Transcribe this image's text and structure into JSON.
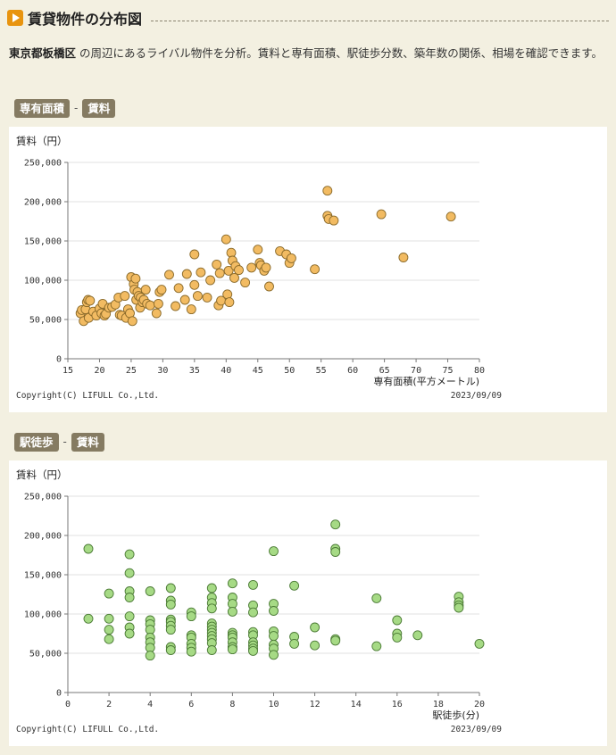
{
  "section": {
    "title": "賃貸物件の分布図",
    "icon": "play-icon"
  },
  "intro": {
    "area": "東京都板橋区",
    "text": " の周辺にあるライバル物件を分析。賃料と専有面積、駅徒歩分数、築年数の関係、相場を確認できます。"
  },
  "charts": [
    {
      "tag_x": "専有面積",
      "tag_sep": "-",
      "tag_y": "賃料"
    },
    {
      "tag_x": "駅徒歩",
      "tag_sep": "-",
      "tag_y": "賃料"
    }
  ],
  "chart_data": [
    {
      "type": "scatter",
      "ylabel": "賃料（円）",
      "xlabel": "専有面積(平方メートル)",
      "xlim": [
        15,
        80
      ],
      "ylim": [
        0,
        250000
      ],
      "x_ticks": [
        15,
        20,
        25,
        30,
        35,
        40,
        45,
        50,
        55,
        60,
        65,
        70,
        75,
        80
      ],
      "y_ticks": [
        0,
        50000,
        100000,
        150000,
        200000,
        250000
      ],
      "y_tick_labels": [
        "0",
        "50,000",
        "100,000",
        "150,000",
        "200,000",
        "250,000"
      ],
      "grid": true,
      "marker_color": "#f2bb62",
      "marker_edge": "#8a6a2a",
      "copyright": "Copyright(C) LIFULL Co.,Ltd.",
      "date": "2023/09/09",
      "points": [
        [
          17,
          58000
        ],
        [
          17.2,
          62000
        ],
        [
          17.5,
          48000
        ],
        [
          17.8,
          63000
        ],
        [
          18,
          72000
        ],
        [
          18.2,
          75000
        ],
        [
          18.5,
          74000
        ],
        [
          18.3,
          52000
        ],
        [
          19,
          60000
        ],
        [
          19.5,
          55000
        ],
        [
          20,
          64000
        ],
        [
          20.3,
          58000
        ],
        [
          20.5,
          70000
        ],
        [
          20.8,
          55000
        ],
        [
          21,
          57000
        ],
        [
          21.5,
          65000
        ],
        [
          22,
          66000
        ],
        [
          22.5,
          69000
        ],
        [
          23,
          78000
        ],
        [
          23.2,
          56000
        ],
        [
          23.5,
          55000
        ],
        [
          24,
          80000
        ],
        [
          24.2,
          52000
        ],
        [
          24.5,
          63000
        ],
        [
          24.8,
          58000
        ],
        [
          25,
          104000
        ],
        [
          25.2,
          48000
        ],
        [
          25.4,
          95000
        ],
        [
          25.5,
          88000
        ],
        [
          25.7,
          102000
        ],
        [
          25.8,
          75000
        ],
        [
          26,
          85000
        ],
        [
          26.2,
          80000
        ],
        [
          26.4,
          65000
        ],
        [
          26.5,
          78000
        ],
        [
          26.8,
          72000
        ],
        [
          27,
          75000
        ],
        [
          27.3,
          88000
        ],
        [
          27.5,
          70000
        ],
        [
          28,
          68000
        ],
        [
          29,
          58000
        ],
        [
          29.3,
          70000
        ],
        [
          29.5,
          85000
        ],
        [
          29.8,
          88000
        ],
        [
          31,
          107000
        ],
        [
          32,
          67000
        ],
        [
          32.5,
          90000
        ],
        [
          33.5,
          75000
        ],
        [
          33.8,
          108000
        ],
        [
          34.5,
          63000
        ],
        [
          35,
          94000
        ],
        [
          35,
          133000
        ],
        [
          35.5,
          80000
        ],
        [
          36,
          110000
        ],
        [
          37,
          78000
        ],
        [
          37.5,
          100000
        ],
        [
          38.5,
          120000
        ],
        [
          38.8,
          68000
        ],
        [
          39,
          109000
        ],
        [
          39.2,
          74000
        ],
        [
          40,
          152000
        ],
        [
          40.2,
          82000
        ],
        [
          40.4,
          112000
        ],
        [
          40.5,
          72000
        ],
        [
          40.8,
          135000
        ],
        [
          41,
          125000
        ],
        [
          41.3,
          103000
        ],
        [
          41.5,
          118000
        ],
        [
          42,
          113000
        ],
        [
          43,
          97000
        ],
        [
          44,
          116000
        ],
        [
          45,
          139000
        ],
        [
          45.3,
          122000
        ],
        [
          45.5,
          119000
        ],
        [
          46,
          112000
        ],
        [
          46.3,
          116000
        ],
        [
          46.8,
          92000
        ],
        [
          48.5,
          137000
        ],
        [
          49.5,
          133000
        ],
        [
          50,
          122000
        ],
        [
          50.3,
          128000
        ],
        [
          54,
          114000
        ],
        [
          56,
          214000
        ],
        [
          56,
          182000
        ],
        [
          56.2,
          178000
        ],
        [
          57,
          176000
        ],
        [
          64.5,
          184000
        ],
        [
          68,
          129000
        ],
        [
          75.5,
          181000
        ]
      ]
    },
    {
      "type": "scatter",
      "ylabel": "賃料（円）",
      "xlabel": "駅徒歩(分)",
      "xlim": [
        0,
        20
      ],
      "ylim": [
        0,
        250000
      ],
      "x_ticks": [
        0,
        2,
        4,
        6,
        8,
        10,
        12,
        14,
        16,
        18,
        20
      ],
      "y_ticks": [
        0,
        50000,
        100000,
        150000,
        200000,
        250000
      ],
      "y_tick_labels": [
        "0",
        "50,000",
        "100,000",
        "150,000",
        "200,000",
        "250,000"
      ],
      "grid": true,
      "marker_color": "#a6da85",
      "marker_edge": "#4b7a35",
      "copyright": "Copyright(C) LIFULL Co.,Ltd.",
      "date": "2023/09/09",
      "points": [
        [
          1,
          183000
        ],
        [
          1,
          94000
        ],
        [
          2,
          126000
        ],
        [
          2,
          94000
        ],
        [
          2,
          80000
        ],
        [
          2,
          68000
        ],
        [
          3,
          176000
        ],
        [
          3,
          152000
        ],
        [
          3,
          129000
        ],
        [
          3,
          121000
        ],
        [
          3,
          97000
        ],
        [
          3,
          83000
        ],
        [
          3,
          75000
        ],
        [
          4,
          129000
        ],
        [
          4,
          92000
        ],
        [
          4,
          87000
        ],
        [
          4,
          80000
        ],
        [
          4,
          70000
        ],
        [
          4,
          64000
        ],
        [
          4,
          57000
        ],
        [
          4,
          47000
        ],
        [
          5,
          133000
        ],
        [
          5,
          117000
        ],
        [
          5,
          112000
        ],
        [
          5,
          93000
        ],
        [
          5,
          90000
        ],
        [
          5,
          85000
        ],
        [
          5,
          80000
        ],
        [
          5,
          58000
        ],
        [
          5,
          54000
        ],
        [
          6,
          102000
        ],
        [
          6,
          97000
        ],
        [
          6,
          73000
        ],
        [
          6,
          70000
        ],
        [
          6,
          62000
        ],
        [
          6,
          57000
        ],
        [
          6,
          52000
        ],
        [
          7,
          133000
        ],
        [
          7,
          121000
        ],
        [
          7,
          114000
        ],
        [
          7,
          107000
        ],
        [
          7,
          88000
        ],
        [
          7,
          84000
        ],
        [
          7,
          80000
        ],
        [
          7,
          76000
        ],
        [
          7,
          72000
        ],
        [
          7,
          68000
        ],
        [
          7,
          63000
        ],
        [
          7,
          54000
        ],
        [
          8,
          139000
        ],
        [
          8,
          121000
        ],
        [
          8,
          113000
        ],
        [
          8,
          103000
        ],
        [
          8,
          76000
        ],
        [
          8,
          73000
        ],
        [
          8,
          70000
        ],
        [
          8,
          64000
        ],
        [
          8,
          58000
        ],
        [
          8,
          55000
        ],
        [
          9,
          137000
        ],
        [
          9,
          111000
        ],
        [
          9,
          102000
        ],
        [
          9,
          77000
        ],
        [
          9,
          73000
        ],
        [
          9,
          64000
        ],
        [
          9,
          60000
        ],
        [
          9,
          56000
        ],
        [
          9,
          53000
        ],
        [
          10,
          180000
        ],
        [
          10,
          113000
        ],
        [
          10,
          104000
        ],
        [
          10,
          78000
        ],
        [
          10,
          72000
        ],
        [
          10,
          61000
        ],
        [
          10,
          56000
        ],
        [
          10,
          48000
        ],
        [
          11,
          136000
        ],
        [
          11,
          71000
        ],
        [
          11,
          62000
        ],
        [
          12,
          83000
        ],
        [
          12,
          60000
        ],
        [
          13,
          214000
        ],
        [
          13,
          183000
        ],
        [
          13,
          179000
        ],
        [
          13,
          68000
        ],
        [
          13,
          66000
        ],
        [
          15,
          120000
        ],
        [
          15,
          59000
        ],
        [
          16,
          92000
        ],
        [
          16,
          75000
        ],
        [
          16,
          70000
        ],
        [
          17,
          73000
        ],
        [
          19,
          122000
        ],
        [
          19,
          115000
        ],
        [
          19,
          111000
        ],
        [
          19,
          108000
        ],
        [
          20,
          62000
        ]
      ]
    }
  ]
}
